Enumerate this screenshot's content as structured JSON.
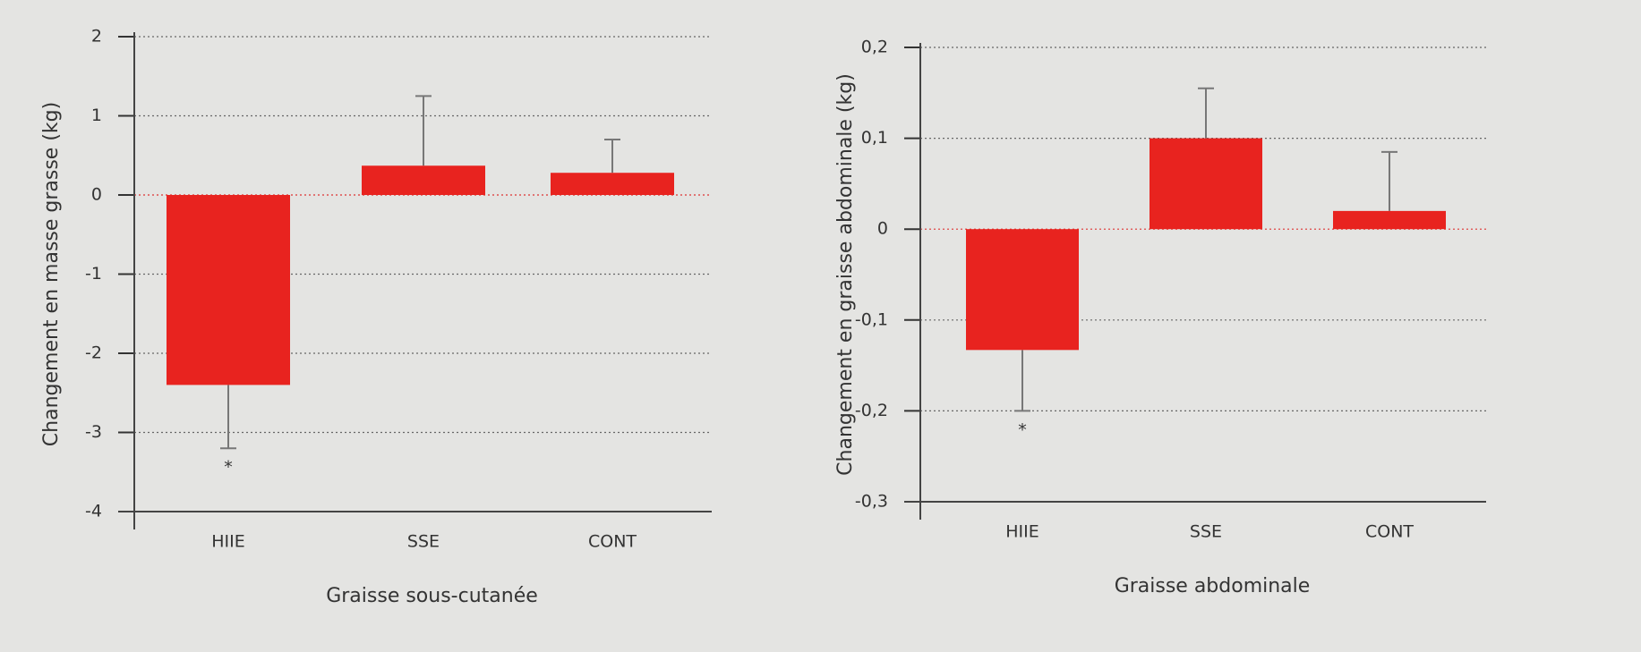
{
  "chart_data": [
    {
      "type": "bar",
      "title": "Graisse sous-cutanée",
      "ylabel": "Changement en masse grasse (kg)",
      "categories": [
        "HIIE",
        "SSE",
        "CONT"
      ],
      "values": [
        -2.4,
        0.37,
        0.28
      ],
      "errors": [
        0.8,
        0.88,
        0.42
      ],
      "significance": [
        "*",
        null,
        null
      ],
      "color": "#e8231f",
      "ylim": [
        -4,
        2
      ],
      "yticks": [
        -4,
        -3,
        -2,
        -1,
        0,
        1,
        2
      ],
      "grid": true
    },
    {
      "type": "bar",
      "title": "Graisse abdominale",
      "ylabel": "Changement en graisse abdominale (kg)",
      "categories": [
        "HIIE",
        "SSE",
        "CONT"
      ],
      "values": [
        -0.133,
        0.1,
        0.02
      ],
      "errors": [
        0.067,
        0.055,
        0.065
      ],
      "significance": [
        "*",
        null,
        null
      ],
      "color": "#e8231f",
      "ylim": [
        -0.3,
        0.2
      ],
      "yticks": [
        {
          "value": -0.3,
          "label": "-0,3"
        },
        {
          "value": -0.2,
          "label": "-0,2"
        },
        {
          "value": -0.1,
          "label": "-0,1"
        },
        {
          "value": 0,
          "label": "0"
        },
        {
          "value": 0.1,
          "label": "0,1"
        },
        {
          "value": 0.2,
          "label": "0,2"
        }
      ],
      "grid": true
    }
  ]
}
